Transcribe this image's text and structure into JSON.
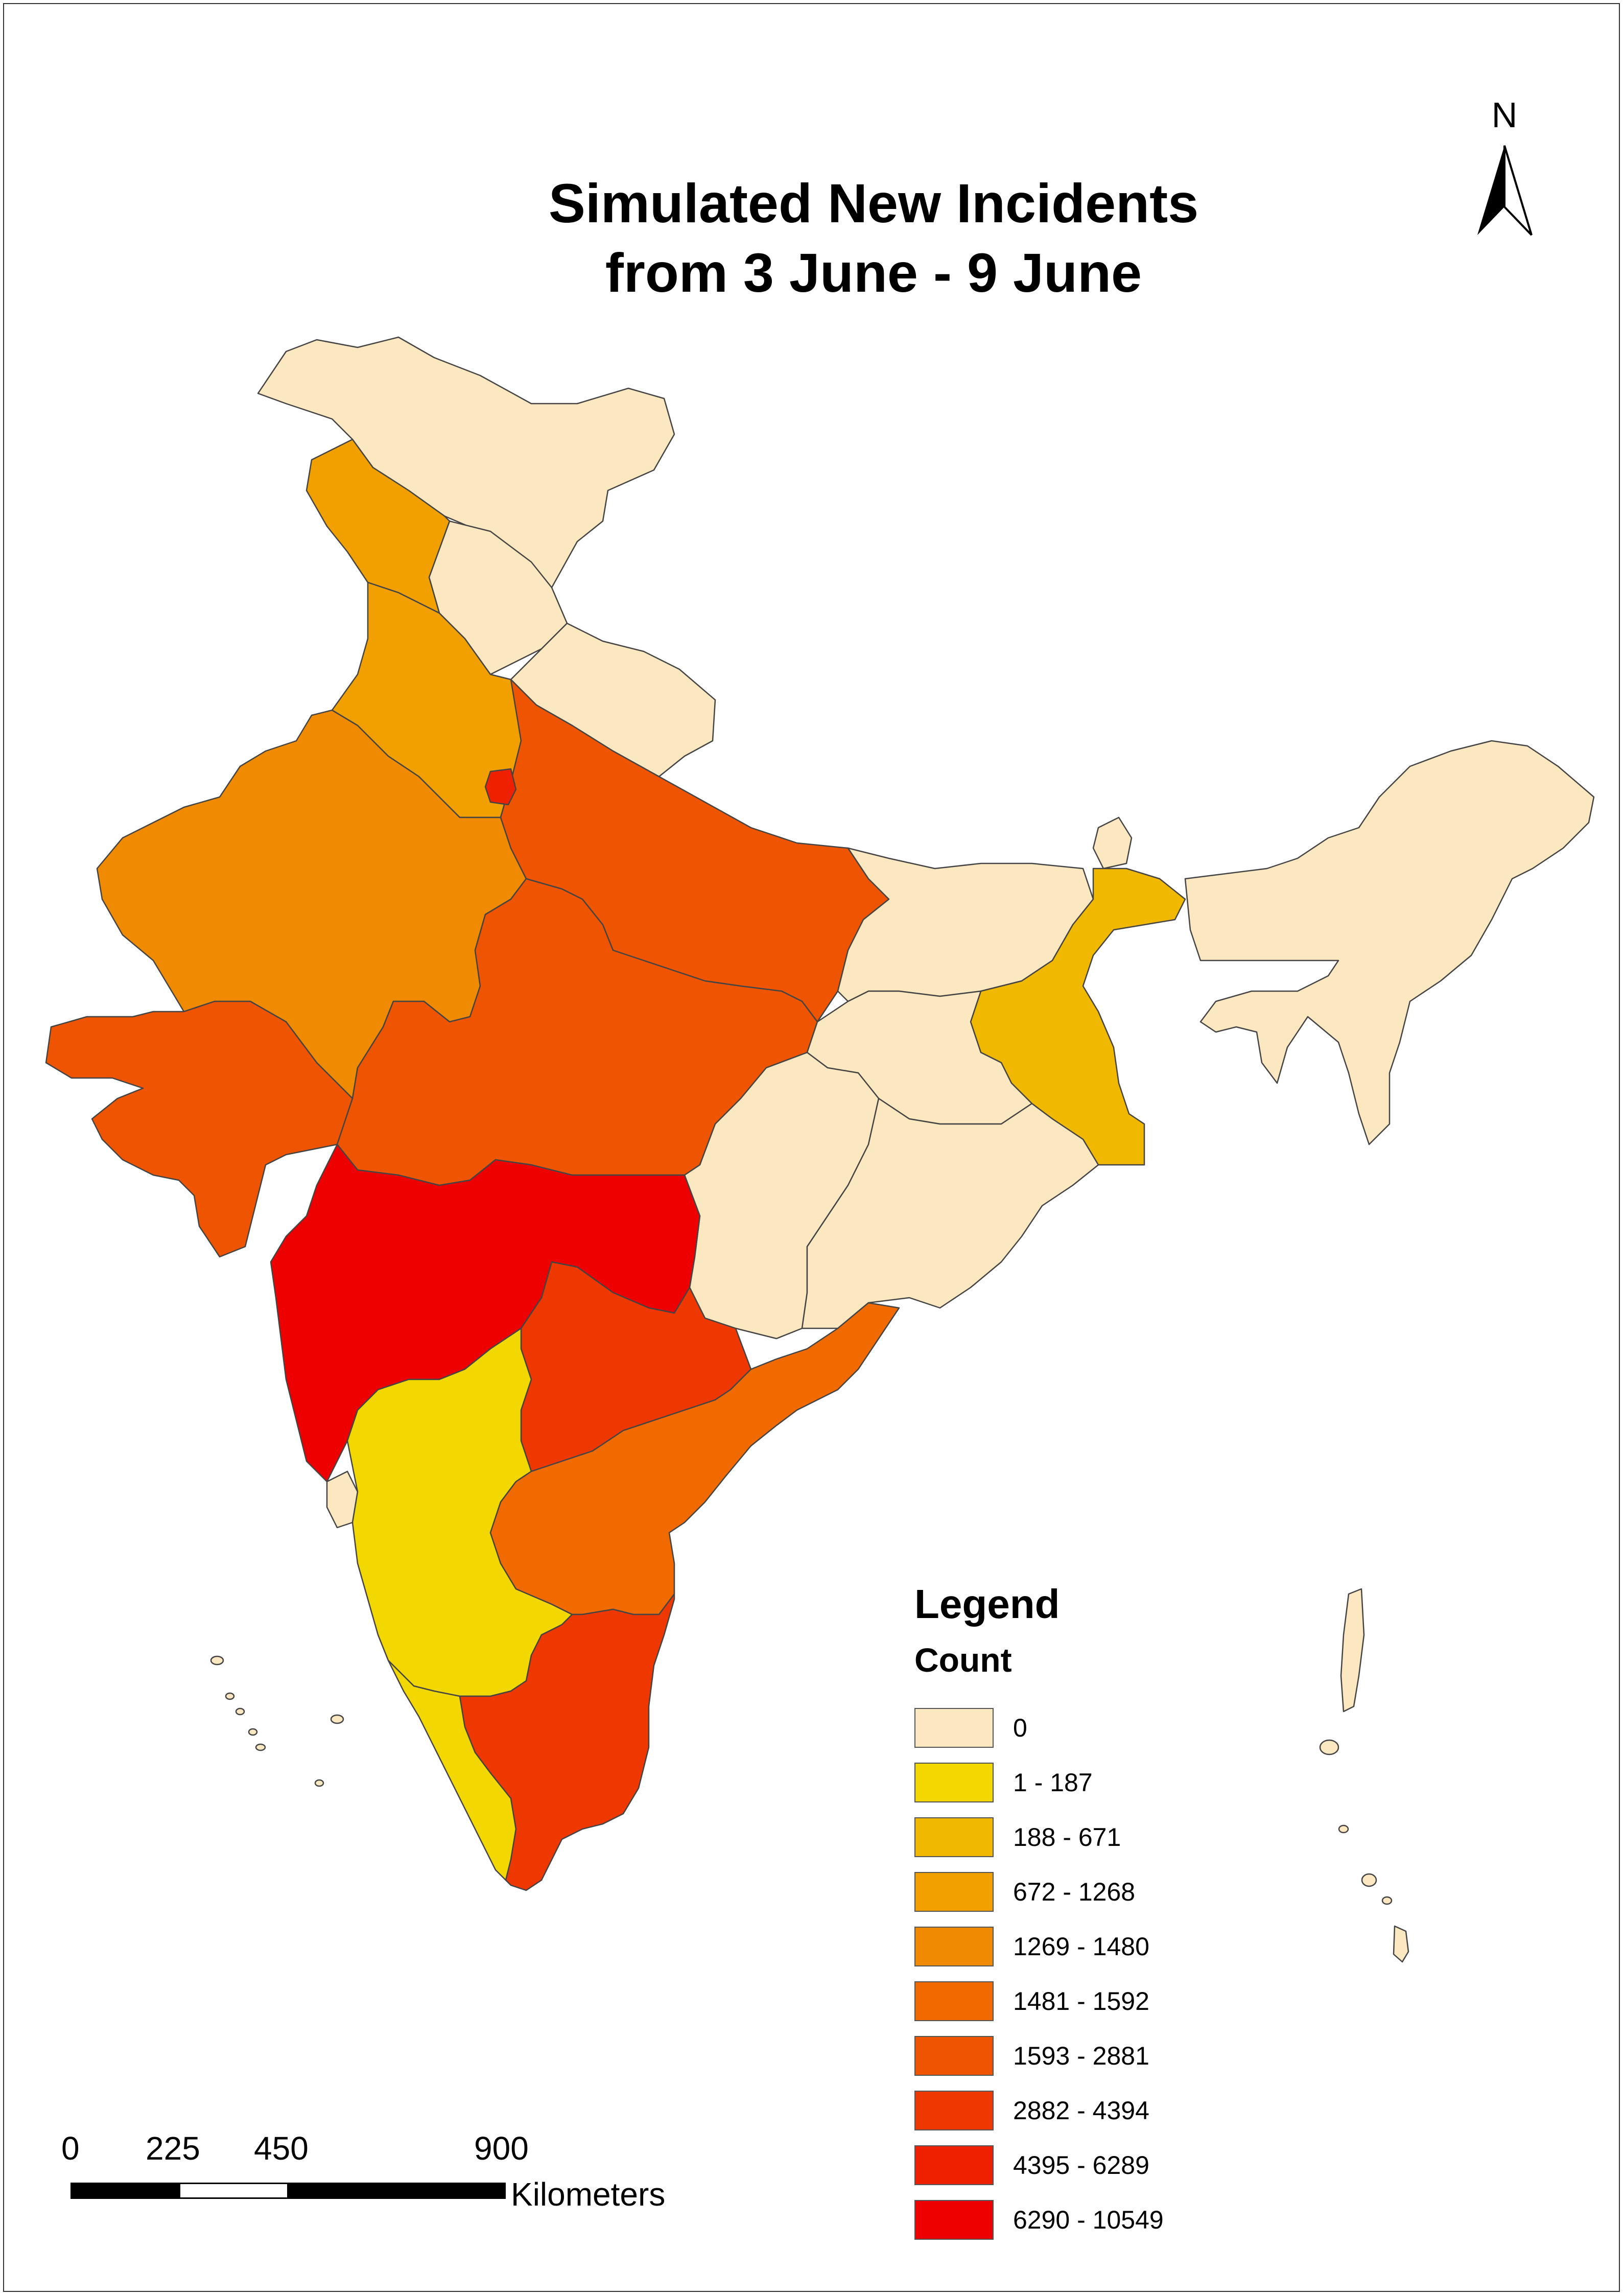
{
  "map": {
    "title_line1": "Simulated New Incidents",
    "title_line2": "from 3 June - 9 June",
    "north_label": "N"
  },
  "legend": {
    "title": "Legend",
    "subtitle": "Count",
    "classes": [
      {
        "label": "0",
        "color": "#fce8c0"
      },
      {
        "label": "1 - 187",
        "color": "#f2d800"
      },
      {
        "label": "188 - 671",
        "color": "#f1b800"
      },
      {
        "label": "672 - 1268",
        "color": "#f1a000"
      },
      {
        "label": "1269 - 1480",
        "color": "#f08a00"
      },
      {
        "label": "1481 - 1592",
        "color": "#f06a00"
      },
      {
        "label": "1593 - 2881",
        "color": "#ef5500"
      },
      {
        "label": "2882 - 4394",
        "color": "#ef3800"
      },
      {
        "label": "4395 - 6289",
        "color": "#ee2000"
      },
      {
        "label": "6290 - 10549",
        "color": "#ee0000"
      }
    ]
  },
  "scale_bar": {
    "ticks": [
      "0",
      "225",
      "450",
      "900"
    ],
    "unit": "Kilometers"
  },
  "regions": [
    {
      "id": "jammu-kashmir",
      "class": 0
    },
    {
      "id": "himachal-pradesh",
      "class": 0
    },
    {
      "id": "uttarakhand",
      "class": 0
    },
    {
      "id": "punjab",
      "class": 3
    },
    {
      "id": "haryana",
      "class": 3
    },
    {
      "id": "delhi",
      "class": 8
    },
    {
      "id": "rajasthan",
      "class": 4
    },
    {
      "id": "gujarat",
      "class": 6
    },
    {
      "id": "uttar-pradesh",
      "class": 6
    },
    {
      "id": "madhya-pradesh",
      "class": 6
    },
    {
      "id": "bihar",
      "class": 0
    },
    {
      "id": "jharkhand",
      "class": 0
    },
    {
      "id": "chhattisgarh",
      "class": 0
    },
    {
      "id": "odisha",
      "class": 0
    },
    {
      "id": "west-bengal",
      "class": 2
    },
    {
      "id": "sikkim",
      "class": 0
    },
    {
      "id": "northeast",
      "class": 0
    },
    {
      "id": "maharashtra",
      "class": 9
    },
    {
      "id": "telangana",
      "class": 7
    },
    {
      "id": "andhra-pradesh",
      "class": 5
    },
    {
      "id": "goa",
      "class": 0
    },
    {
      "id": "karnataka",
      "class": 1
    },
    {
      "id": "kerala",
      "class": 1
    },
    {
      "id": "tamil-nadu",
      "class": 7
    },
    {
      "id": "lakshadweep",
      "class": 0
    },
    {
      "id": "andaman-nicobar",
      "class": 0
    }
  ]
}
